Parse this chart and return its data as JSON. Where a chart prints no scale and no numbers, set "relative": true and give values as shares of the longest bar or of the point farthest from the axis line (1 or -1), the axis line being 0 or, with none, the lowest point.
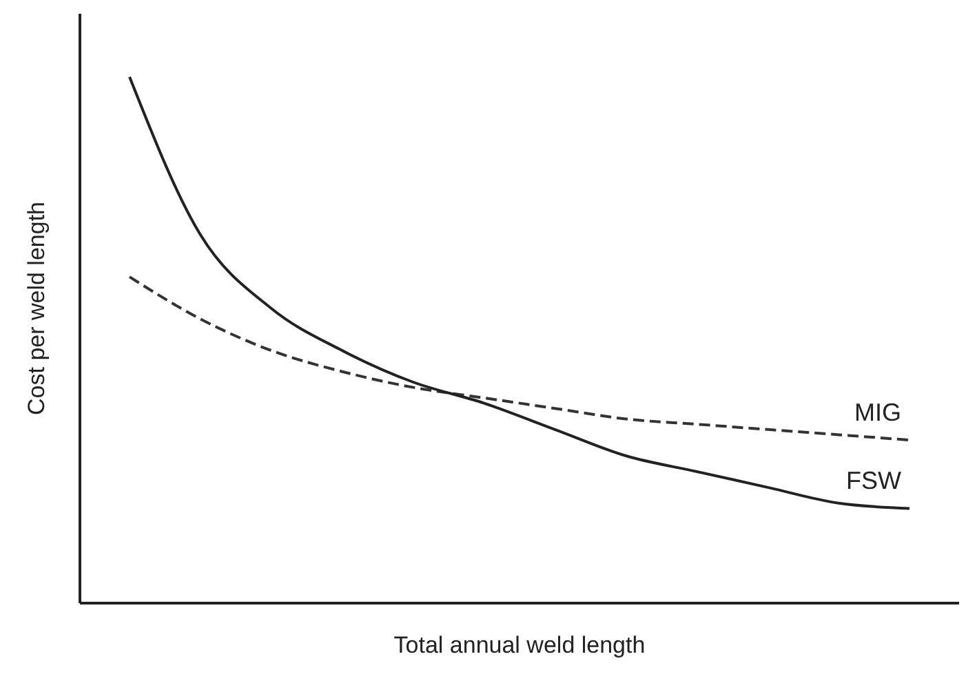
{
  "chart_data": {
    "type": "line",
    "relative": true,
    "xlabel": "Total annual weld length",
    "ylabel": "Cost per weld length",
    "categories": [
      null,
      null,
      null,
      null,
      null,
      null,
      null,
      null,
      null,
      null,
      null,
      null
    ],
    "marker": "none",
    "series": [
      {
        "name": "MIG",
        "color": "#333333",
        "line_style": "dashed",
        "values": [
          0.62,
          0.54,
          0.48,
          0.44,
          0.41,
          0.39,
          0.37,
          0.35,
          0.34,
          0.33,
          0.32,
          0.31
        ]
      },
      {
        "name": "FSW",
        "color": "#222222",
        "line_style": "solid",
        "values": [
          1,
          0.7,
          0.56,
          0.48,
          0.42,
          0.38,
          0.33,
          0.28,
          0.25,
          0.22,
          0.19,
          0.18
        ]
      }
    ]
  }
}
